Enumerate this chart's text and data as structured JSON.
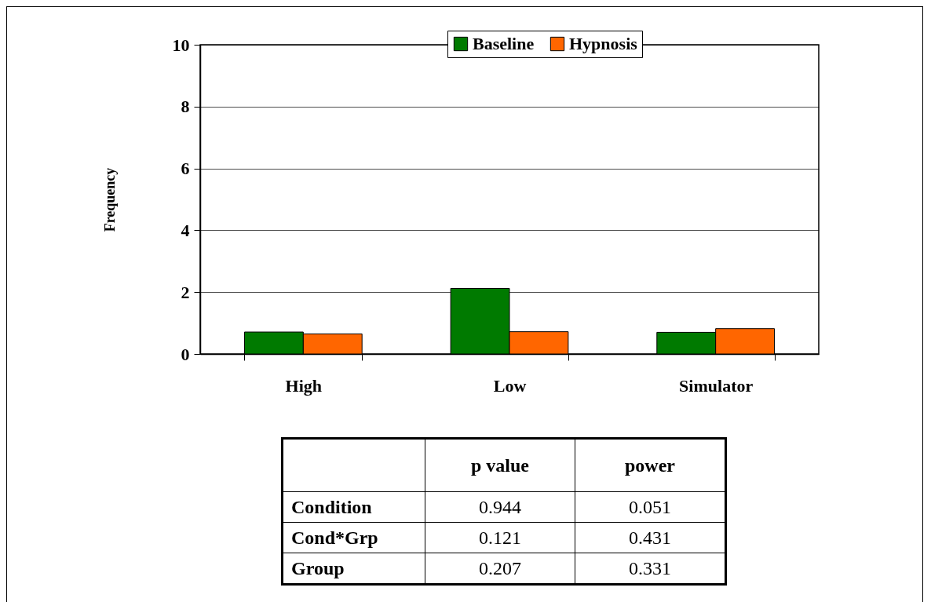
{
  "chart_data": {
    "type": "bar",
    "ylabel": "Frequency",
    "categories": [
      "High",
      "Low",
      "Simulator"
    ],
    "series": [
      {
        "name": "Baseline",
        "color": "#007a00",
        "values": [
          0.71,
          2.12,
          0.7
        ]
      },
      {
        "name": "Hypnosis",
        "color": "#ff6600",
        "values": [
          0.65,
          0.72,
          0.82
        ]
      }
    ],
    "ylim": [
      0,
      10
    ],
    "yticks": [
      0,
      2,
      4,
      6,
      8,
      10
    ],
    "grid": "y",
    "legend": "top right",
    "annotations": [
      "p value",
      "power",
      "Condition",
      "0.944",
      "0.051",
      "Cond*Grp",
      "0.121",
      "0.431",
      "Group",
      "0.207",
      "0.331"
    ]
  }
}
